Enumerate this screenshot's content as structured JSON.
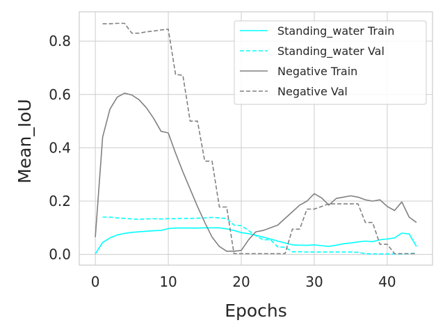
{
  "chart_data": {
    "type": "line",
    "title": "",
    "xlabel": "Epochs",
    "ylabel": "Mean_IoU",
    "xlim": [
      -2.2,
      46.2
    ],
    "ylim": [
      -0.04,
      0.91
    ],
    "xticks": [
      0,
      10,
      20,
      30,
      40
    ],
    "yticks": [
      0.0,
      0.2,
      0.4,
      0.6,
      0.8
    ],
    "ytick_labels": [
      "0.0",
      "0.2",
      "0.4",
      "0.6",
      "0.8"
    ],
    "grid": true,
    "legend_position": "top-right",
    "series": [
      {
        "name": "Standing_water Train",
        "color": "#00FFFF",
        "style": "solid",
        "x": [
          0,
          1,
          2,
          3,
          4,
          5,
          6,
          7,
          8,
          9,
          10,
          11,
          12,
          13,
          14,
          15,
          16,
          17,
          18,
          19,
          20,
          21,
          22,
          23,
          24,
          25,
          26,
          27,
          28,
          29,
          30,
          31,
          32,
          33,
          34,
          35,
          36,
          37,
          38,
          39,
          40,
          41,
          42,
          43,
          44
        ],
        "y": [
          0.002,
          0.045,
          0.062,
          0.073,
          0.079,
          0.083,
          0.085,
          0.087,
          0.089,
          0.09,
          0.097,
          0.099,
          0.099,
          0.099,
          0.099,
          0.1,
          0.1,
          0.1,
          0.096,
          0.09,
          0.082,
          0.078,
          0.072,
          0.065,
          0.058,
          0.05,
          0.043,
          0.036,
          0.035,
          0.034,
          0.036,
          0.033,
          0.03,
          0.035,
          0.04,
          0.043,
          0.047,
          0.05,
          0.048,
          0.055,
          0.058,
          0.062,
          0.08,
          0.077,
          0.03
        ]
      },
      {
        "name": "Standing_water Val",
        "color": "#00FFFF",
        "style": "dashed",
        "x": [
          1,
          2,
          3,
          4,
          5,
          6,
          7,
          8,
          9,
          10,
          11,
          12,
          13,
          14,
          15,
          16,
          17,
          18,
          19,
          20,
          21,
          22,
          23,
          24,
          25,
          26,
          27,
          28,
          29,
          30,
          31,
          32,
          33,
          34,
          35,
          36,
          37,
          38,
          39,
          40,
          41,
          42,
          43,
          44
        ],
        "y": [
          0.14,
          0.14,
          0.137,
          0.135,
          0.133,
          0.132,
          0.133,
          0.134,
          0.133,
          0.134,
          0.134,
          0.135,
          0.135,
          0.136,
          0.137,
          0.139,
          0.137,
          0.135,
          0.11,
          0.108,
          0.09,
          0.07,
          0.055,
          0.055,
          0.028,
          0.027,
          0.01,
          0.01,
          0.009,
          0.009,
          0.009,
          0.009,
          0.009,
          0.009,
          0.009,
          0.008,
          0.003,
          0.002,
          0.002,
          0.002,
          0.002,
          0.002,
          0.003,
          0.005
        ]
      },
      {
        "name": "Negative Train",
        "color": "#808080",
        "style": "solid",
        "x": [
          0,
          1,
          2,
          3,
          4,
          5,
          6,
          7,
          8,
          9,
          10,
          11,
          12,
          13,
          14,
          15,
          16,
          17,
          18,
          19,
          20,
          21,
          22,
          23,
          24,
          25,
          26,
          27,
          28,
          29,
          30,
          31,
          32,
          33,
          34,
          35,
          36,
          37,
          38,
          39,
          40,
          41,
          42,
          43,
          44
        ],
        "y": [
          0.065,
          0.44,
          0.545,
          0.59,
          0.605,
          0.598,
          0.58,
          0.55,
          0.51,
          0.462,
          0.456,
          0.38,
          0.31,
          0.245,
          0.18,
          0.12,
          0.065,
          0.03,
          0.012,
          0.012,
          0.015,
          0.055,
          0.085,
          0.09,
          0.1,
          0.11,
          0.135,
          0.16,
          0.185,
          0.2,
          0.228,
          0.212,
          0.185,
          0.21,
          0.215,
          0.22,
          0.215,
          0.205,
          0.2,
          0.205,
          0.18,
          0.165,
          0.197,
          0.14,
          0.12
        ]
      },
      {
        "name": "Negative Val",
        "color": "#808080",
        "style": "dashed",
        "x": [
          1,
          2,
          3,
          4,
          5,
          6,
          7,
          8,
          9,
          10,
          11,
          12,
          13,
          14,
          15,
          16,
          17,
          18,
          19,
          20,
          21,
          22,
          23,
          24,
          25,
          26,
          27,
          28,
          29,
          30,
          31,
          32,
          33,
          34,
          35,
          36,
          37,
          38,
          39,
          40,
          41,
          42,
          43,
          44
        ],
        "y": [
          0.865,
          0.865,
          0.867,
          0.867,
          0.83,
          0.83,
          0.835,
          0.838,
          0.842,
          0.845,
          0.675,
          0.672,
          0.5,
          0.5,
          0.35,
          0.35,
          0.178,
          0.178,
          0.003,
          0.003,
          0.003,
          0.003,
          0.003,
          0.003,
          0.003,
          0.003,
          0.095,
          0.095,
          0.17,
          0.17,
          0.18,
          0.19,
          0.19,
          0.19,
          0.19,
          0.19,
          0.12,
          0.12,
          0.038,
          0.038,
          0.003,
          0.003,
          0.003,
          0.003
        ]
      }
    ]
  }
}
